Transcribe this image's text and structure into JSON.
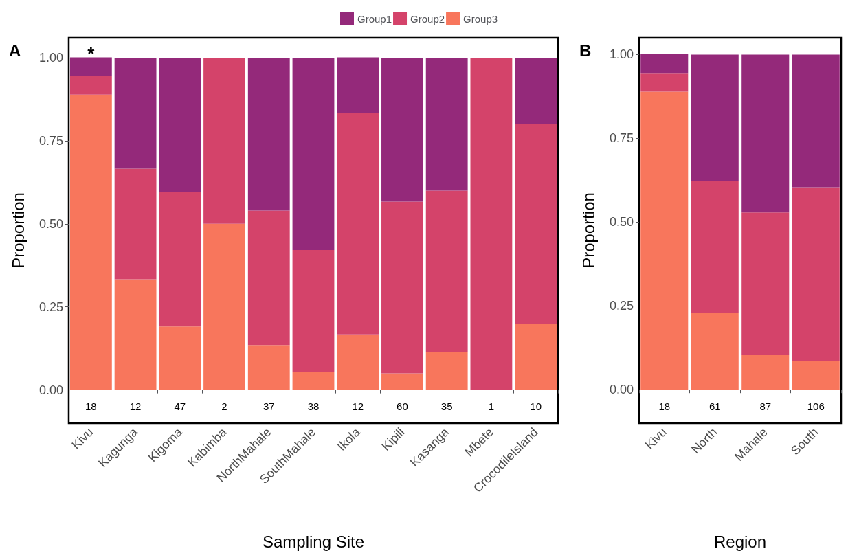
{
  "chart_data": [
    {
      "type": "bar",
      "title": "A",
      "stacked": true,
      "legend": "top",
      "xlabel": "Sampling Site",
      "ylabel": "Proportion",
      "categories": [
        "Kivu",
        "Kagunga",
        "Kigoma",
        "Kabimba",
        "NorthMahale",
        "SouthMahale",
        "Ikola",
        "Kipili",
        "Kasanga",
        "Mbete",
        "CrocodileIsland"
      ],
      "series": [
        {
          "name": "Group3",
          "color": "#f8765c",
          "values": [
            0.889,
            0.333,
            0.191,
            0.5,
            0.135,
            0.053,
            0.167,
            0.05,
            0.114,
            0,
            0.2
          ]
        },
        {
          "name": "Group2",
          "color": "#d4436a",
          "values": [
            0.056,
            0.333,
            0.404,
            0.5,
            0.405,
            0.368,
            0.667,
            0.517,
            0.486,
            1,
            0.6
          ]
        },
        {
          "name": "Group1",
          "color": "#94297a",
          "values": [
            0.056,
            0.333,
            0.404,
            0,
            0.459,
            0.579,
            0.167,
            0.433,
            0.4,
            0,
            0.2
          ]
        }
      ],
      "ylim": [
        -0.1,
        1.06
      ],
      "yticks": [
        {
          "value": 0,
          "label": "0.00"
        },
        {
          "value": 0.25,
          "label": "0.25"
        },
        {
          "value": 0.5,
          "label": "0.50"
        },
        {
          "value": 0.75,
          "label": "0.75"
        },
        {
          "value": 1,
          "label": "1.00"
        }
      ],
      "grid": false,
      "annotations": [
        "*",
        "18",
        "12",
        "47",
        "2",
        "37",
        "38",
        "12",
        "60",
        "35",
        "1",
        "10"
      ]
    },
    {
      "type": "bar",
      "title": "B",
      "stacked": true,
      "legend": false,
      "xlabel": "Region",
      "ylabel": "Proportion",
      "categories": [
        "Kivu",
        "North",
        "Mahale",
        "South"
      ],
      "series": [
        {
          "color": "#f8765c",
          "values": [
            0.889,
            0.23,
            0.103,
            0.085
          ]
        },
        {
          "color": "#d4436a",
          "values": [
            0.056,
            0.393,
            0.426,
            0.519
          ]
        },
        {
          "color": "#94297a",
          "values": [
            0.056,
            0.377,
            0.471,
            0.396
          ]
        }
      ],
      "ylim": [
        -0.1,
        1.05
      ],
      "yticks": [
        {
          "value": 0,
          "label": "0.00"
        },
        {
          "value": 0.25,
          "label": "0.25"
        },
        {
          "value": 0.5,
          "label": "0.50"
        },
        {
          "value": 0.75,
          "label": "0.75"
        },
        {
          "value": 1,
          "label": "1.00"
        }
      ],
      "grid": false,
      "annotations": [
        "18",
        "61",
        "87",
        "106"
      ]
    }
  ]
}
